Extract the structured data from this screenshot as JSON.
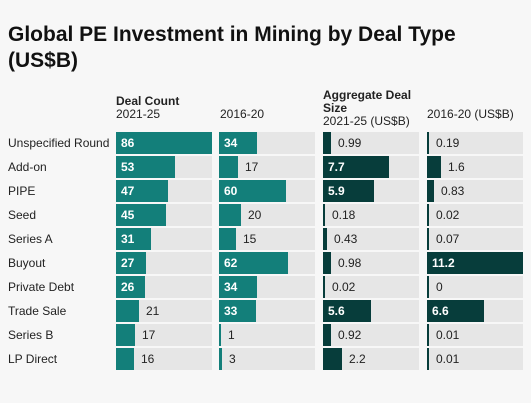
{
  "title": "Global PE Investment in Mining by Deal Type (US$B)",
  "headers": {
    "deal_count": "Deal Count",
    "count_2021": "2021-25",
    "count_2016": "2016-20",
    "aggregate_line1": "Aggregate Deal",
    "aggregate_line2": "Size",
    "agg_2021": "2021-25 (US$B)",
    "agg_2016": "2016-20 (US$B)"
  },
  "colors": {
    "count_bar": "#137f7a",
    "aggregate_bar": "#073d3b",
    "track": "#e6e6e6"
  },
  "chart_data": {
    "type": "table",
    "title": "Global PE Investment in Mining by Deal Type (US$B)",
    "categories": [
      "Unspecified Round",
      "Add-on",
      "PIPE",
      "Seed",
      "Series A",
      "Buyout",
      "Private Debt",
      "Trade Sale",
      "Series B",
      "LP Direct"
    ],
    "series": [
      {
        "name": "Deal Count 2021-25",
        "values": [
          86,
          53,
          47,
          45,
          31,
          27,
          26,
          21,
          17,
          16
        ]
      },
      {
        "name": "Deal Count 2016-20",
        "values": [
          34,
          17,
          60,
          20,
          15,
          62,
          34,
          33,
          1,
          3
        ]
      },
      {
        "name": "Aggregate Deal Size 2021-25 (US$B)",
        "values": [
          0.99,
          7.7,
          5.9,
          0.18,
          0.43,
          0.98,
          0.02,
          5.6,
          0.92,
          2.2
        ]
      },
      {
        "name": "Aggregate Deal Size 2016-20 (US$B)",
        "values": [
          0.19,
          1.6,
          0.83,
          0.02,
          0.07,
          11.2,
          0,
          6.6,
          0.01,
          0.01
        ]
      }
    ],
    "labels": [
      [
        "86",
        "53",
        "47",
        "45",
        "31",
        "27",
        "26",
        "21",
        "17",
        "16"
      ],
      [
        "34",
        "17",
        "60",
        "20",
        "15",
        "62",
        "34",
        "33",
        "1",
        "3"
      ],
      [
        "0.99",
        "7.7",
        "5.9",
        "0.18",
        "0.43",
        "0.98",
        "0.02",
        "5.6",
        "0.92",
        "2.2"
      ],
      [
        "0.19",
        "1.6",
        "0.83",
        "0.02",
        "0.07",
        "11.2",
        "0",
        "6.6",
        "0.01",
        "0.01"
      ]
    ],
    "column_max": [
      86,
      86,
      11.2,
      11.2
    ]
  }
}
